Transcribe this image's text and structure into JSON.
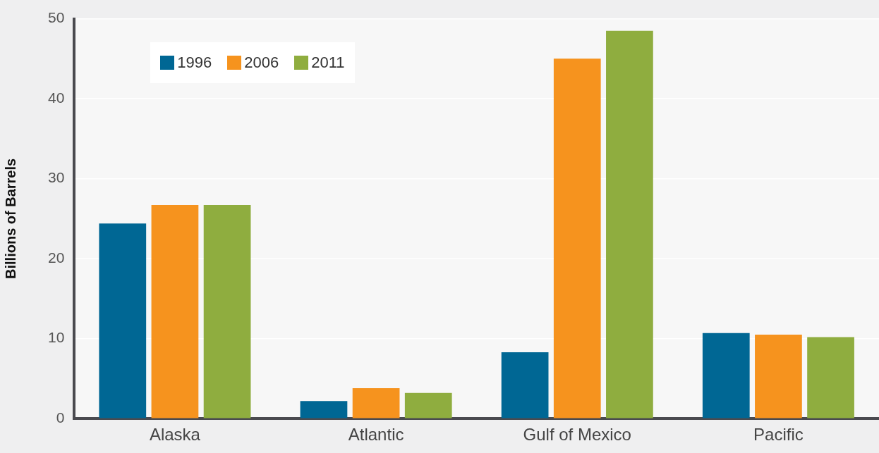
{
  "chart_data": {
    "type": "bar",
    "ylabel": "Billions of Barrels",
    "categories": [
      "Alaska",
      "Atlantic",
      "Gulf of Mexico",
      "Pacific"
    ],
    "series": [
      {
        "name": "1996",
        "color": "#006794",
        "values": [
          24.4,
          2.2,
          8.3,
          10.7
        ]
      },
      {
        "name": "2006",
        "color": "#f6931e",
        "values": [
          26.7,
          3.8,
          45.0,
          10.5
        ]
      },
      {
        "name": "2011",
        "color": "#8fad3f",
        "values": [
          26.7,
          3.2,
          48.5,
          10.2
        ]
      }
    ],
    "ylim": [
      0,
      50
    ],
    "yticks": [
      0,
      10,
      20,
      30,
      40,
      50
    ],
    "grid": "y",
    "legend": "top left"
  }
}
